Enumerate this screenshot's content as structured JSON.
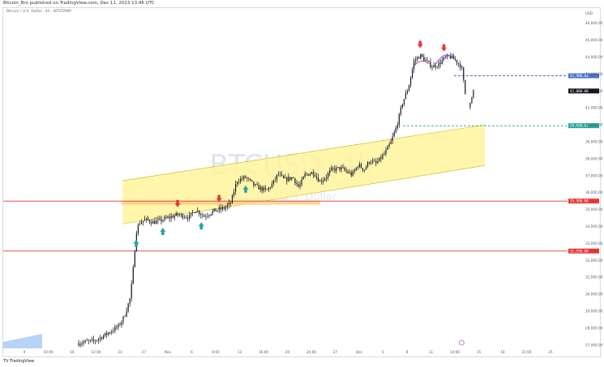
{
  "header": {
    "credit": "Bitcoin_Bro published on TradingView.com, Dec 11, 2023 13:46 UTC"
  },
  "toolbar": {
    "symbol_line": "Bitcoin / U.S. Dollar · 4h · BITSTAMP"
  },
  "footer": {
    "logo": "TV TradingView"
  },
  "watermark": {
    "title": "BTCUSD, 4h",
    "subtitle": "Bitcoin / U.S. Dollar"
  },
  "axis": {
    "currency": "USD"
  },
  "chart_data": {
    "type": "candlestick",
    "title": "BTCUSD, 4h",
    "subtitle": "Bitcoin / U.S. Dollar",
    "x_ticks": [
      "9",
      "10:00",
      "16",
      "12:00",
      "23",
      "27",
      "Nov",
      "6",
      "8:00",
      "13",
      "16:00",
      "20",
      "24:00",
      "27",
      "Dec",
      "5",
      "8",
      "11",
      "14:00",
      "15",
      "18",
      "21:00",
      "25"
    ],
    "y_ticks": [
      27000,
      28000,
      29000,
      30000,
      31000,
      32000,
      33000,
      34000,
      35000,
      36000,
      37000,
      38000,
      39000,
      40000,
      41000,
      42000,
      43000,
      44000,
      45000,
      46000
    ],
    "ylim": [
      26800,
      46800
    ],
    "price_path": [
      [
        0,
        27100
      ],
      [
        6,
        27250
      ],
      [
        10,
        27650
      ],
      [
        14,
        28100
      ],
      [
        16,
        28700
      ],
      [
        18,
        29800
      ],
      [
        19,
        31500
      ],
      [
        20,
        33700
      ],
      [
        21,
        34200
      ],
      [
        23,
        34400
      ],
      [
        26,
        34250
      ],
      [
        30,
        34450
      ],
      [
        34,
        34700
      ],
      [
        38,
        34550
      ],
      [
        40,
        35000
      ],
      [
        43,
        34600
      ],
      [
        46,
        34900
      ],
      [
        50,
        35100
      ],
      [
        52,
        35400
      ],
      [
        54,
        36700
      ],
      [
        57,
        36900
      ],
      [
        60,
        36400
      ],
      [
        64,
        36100
      ],
      [
        66,
        36500
      ],
      [
        68,
        37100
      ],
      [
        70,
        36750
      ],
      [
        73,
        36900
      ],
      [
        75,
        36300
      ],
      [
        77,
        37050
      ],
      [
        80,
        37200
      ],
      [
        82,
        36650
      ],
      [
        84,
        36900
      ],
      [
        86,
        37350
      ],
      [
        89,
        37450
      ],
      [
        91,
        37250
      ],
      [
        93,
        37050
      ],
      [
        95,
        37650
      ],
      [
        97,
        37350
      ],
      [
        99,
        37900
      ],
      [
        101,
        37700
      ],
      [
        104,
        38300
      ],
      [
        106,
        38950
      ],
      [
        108,
        39900
      ],
      [
        110,
        41300
      ],
      [
        112,
        42200
      ],
      [
        114,
        43800
      ],
      [
        116,
        44100
      ],
      [
        118,
        43750
      ],
      [
        120,
        43450
      ],
      [
        122,
        43550
      ],
      [
        124,
        43900
      ],
      [
        126,
        44050
      ],
      [
        128,
        43800
      ],
      [
        130,
        43400
      ],
      [
        131,
        42100
      ],
      [
        132,
        40800
      ],
      [
        133,
        41500
      ],
      [
        134,
        42000
      ]
    ],
    "channel": {
      "upper_start": 36700,
      "upper_end": 40000,
      "lower_start": 34150,
      "lower_end": 37600,
      "color": "#fff59d"
    },
    "horizontal_lines": [
      {
        "value": 35500,
        "color": "#e53935"
      },
      {
        "value": 32550,
        "color": "#e53935"
      },
      {
        "value": 39950,
        "color": "#26a69a"
      },
      {
        "value": 42900,
        "color": "#4a72c9"
      }
    ],
    "markers": [
      {
        "kind": "down-arrow",
        "at": 34,
        "color": "#e53935"
      },
      {
        "kind": "down-arrow",
        "at": 48,
        "color": "#e53935"
      },
      {
        "kind": "down-arrow",
        "at": 116,
        "color": "#e53935"
      },
      {
        "kind": "down-arrow",
        "at": 124,
        "color": "#e53935"
      },
      {
        "kind": "up-arrow",
        "at": 20,
        "color": "#26a69a"
      },
      {
        "kind": "up-arrow",
        "at": 29,
        "color": "#26a69a"
      },
      {
        "kind": "up-arrow",
        "at": 42,
        "color": "#26a69a"
      },
      {
        "kind": "up-arrow",
        "at": 57,
        "color": "#26a69a"
      }
    ],
    "colors": {
      "up": "#26a69a",
      "down": "#ef5350",
      "candles": "#131722"
    },
    "grid": false
  }
}
